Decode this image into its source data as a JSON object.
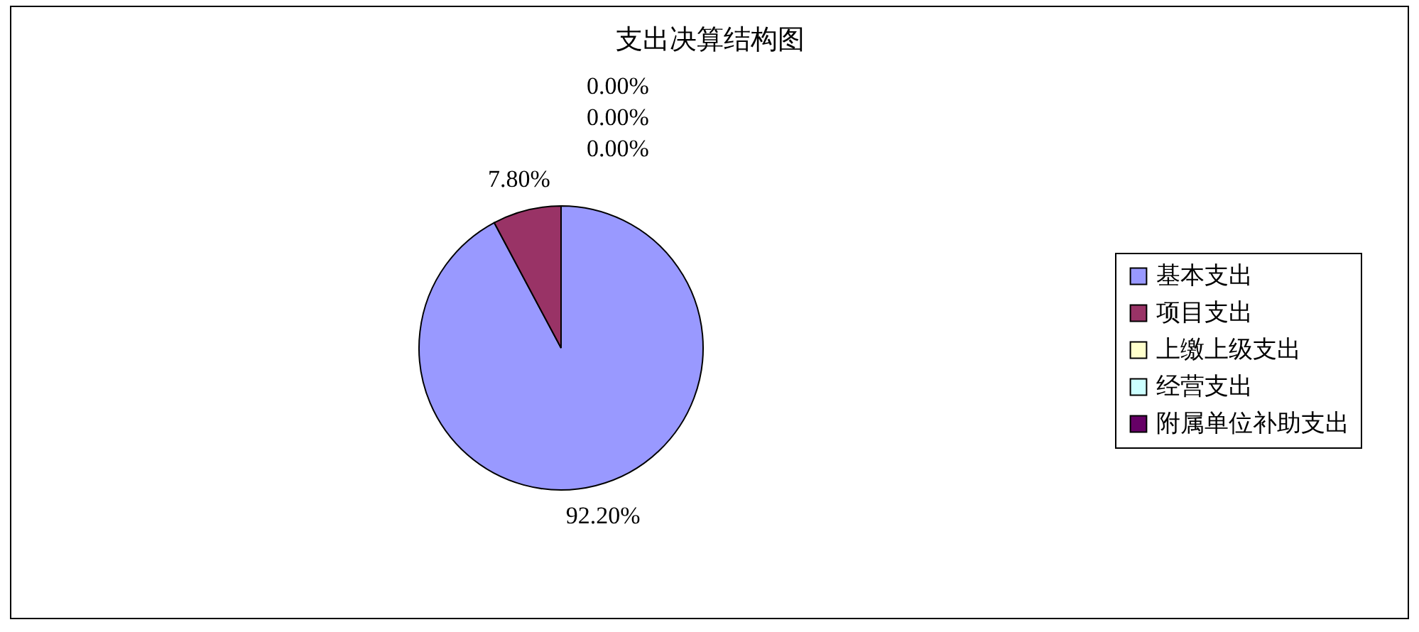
{
  "chart_data": {
    "type": "pie",
    "title": "支出决算结构图",
    "categories": [
      "基本支出",
      "项目支出",
      "上缴上级支出",
      "经营支出",
      "附属单位补助支出"
    ],
    "values": [
      92.2,
      7.8,
      0,
      0,
      0
    ],
    "colors": [
      "#9999ff",
      "#993366",
      "#ffffcc",
      "#ccffff",
      "#660066"
    ],
    "value_labels": [
      "92.20%",
      "7.80%",
      "0.00%",
      "0.00%",
      "0.00%"
    ],
    "legend": "right"
  }
}
